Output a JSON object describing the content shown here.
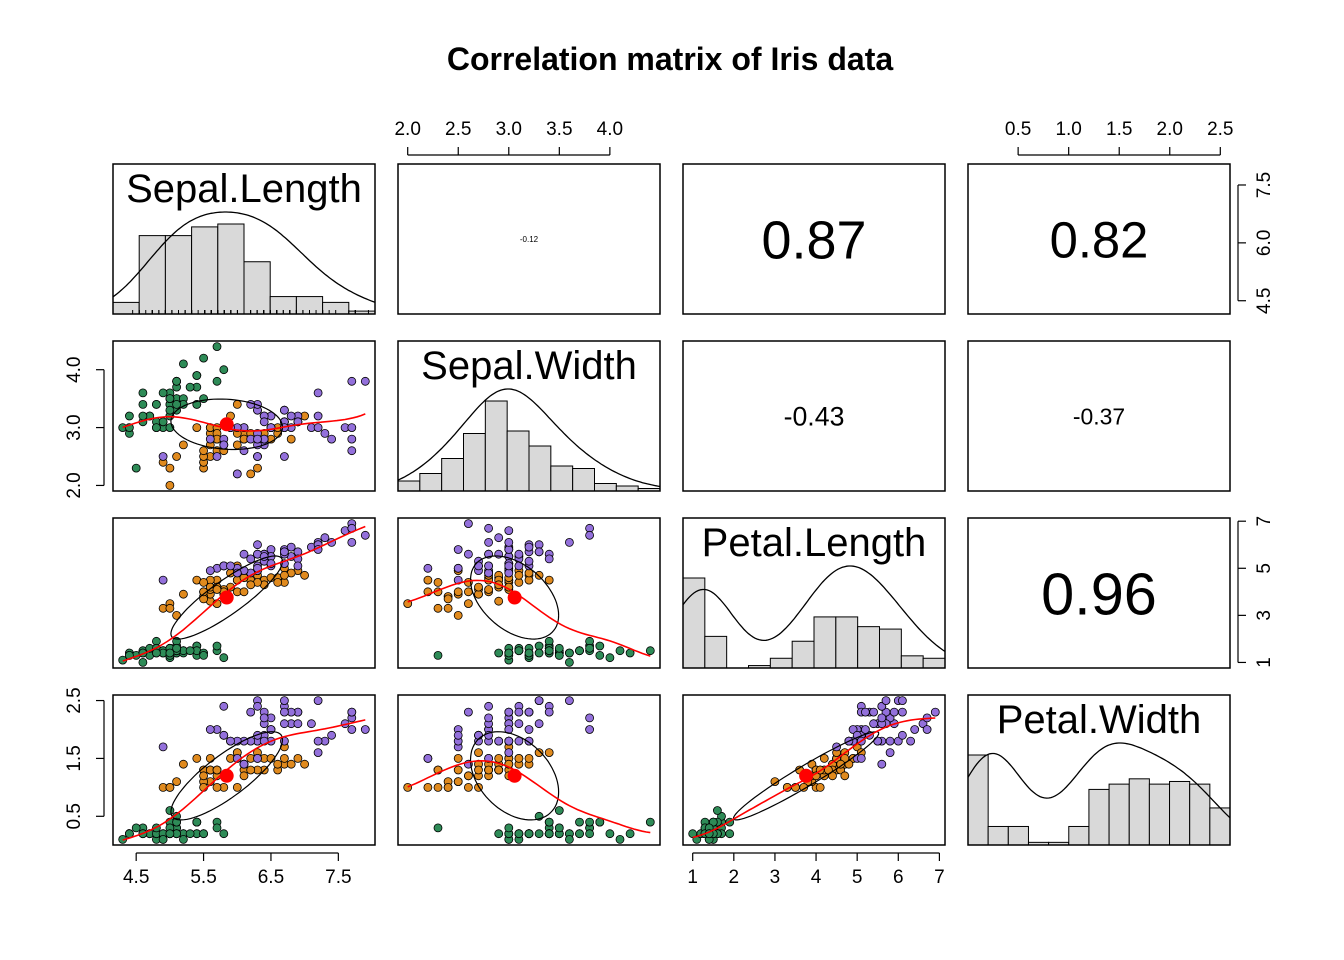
{
  "title": "Correlation matrix of Iris data",
  "chart_data": {
    "type": "scatter",
    "title": "Correlation matrix of Iris data",
    "variables": [
      "Sepal.Length",
      "Sepal.Width",
      "Petal.Length",
      "Petal.Width"
    ],
    "ranges": {
      "Sepal.Length": [
        4.3,
        7.9
      ],
      "Sepal.Width": [
        2.0,
        4.4
      ],
      "Petal.Length": [
        1.0,
        6.9
      ],
      "Petal.Width": [
        0.1,
        2.5
      ]
    },
    "ticks": {
      "Sepal.Length": [
        "4.5",
        "5.5",
        "6.5",
        "7.5"
      ],
      "Sepal.Width": [
        "2.0",
        "2.5",
        "3.0",
        "3.5",
        "4.0"
      ],
      "Sepal.Width.left": [
        "2.0",
        "3.0",
        "4.0"
      ],
      "Sepal.Length.right": [
        "4.5",
        "6.0",
        "7.5"
      ],
      "Petal.Length": [
        "1",
        "2",
        "3",
        "4",
        "5",
        "6",
        "7"
      ],
      "Petal.Length.right": [
        "1",
        "3",
        "5",
        "7"
      ],
      "Petal.Width": [
        "0.5",
        "1.0",
        "1.5",
        "2.0",
        "2.5"
      ],
      "Petal.Width.left": [
        "0.5",
        "1.5",
        "2.5"
      ]
    },
    "correlations": [
      {
        "row": 1,
        "col": 2,
        "label": "-0.12",
        "value": -0.12
      },
      {
        "row": 1,
        "col": 3,
        "label": "0.87",
        "value": 0.87
      },
      {
        "row": 1,
        "col": 4,
        "label": "0.82",
        "value": 0.82
      },
      {
        "row": 2,
        "col": 3,
        "label": "-0.43",
        "value": -0.43
      },
      {
        "row": 2,
        "col": 4,
        "label": "-0.37",
        "value": -0.37
      },
      {
        "row": 3,
        "col": 4,
        "label": "0.96",
        "value": 0.96
      }
    ],
    "histograms": {
      "Sepal.Length": {
        "breaks": [
          4.0,
          4.4,
          4.8,
          5.2,
          5.6,
          6.0,
          6.4,
          6.8,
          7.2,
          7.6,
          8.0
        ],
        "counts": [
          4,
          27,
          27,
          30,
          31,
          18,
          6,
          6,
          4,
          1
        ]
      },
      "Sepal.Width": {
        "breaks": [
          2.0,
          2.2,
          2.4,
          2.6,
          2.8,
          3.0,
          3.2,
          3.4,
          3.6,
          3.8,
          4.0,
          4.2,
          4.4
        ],
        "counts": [
          4,
          7,
          13,
          23,
          36,
          24,
          18,
          10,
          9,
          3,
          2,
          1
        ]
      },
      "Petal.Length": {
        "breaks": [
          1.0,
          1.5,
          2.0,
          2.5,
          3.0,
          3.5,
          4.0,
          4.5,
          5.0,
          5.5,
          6.0,
          6.5,
          7.0
        ],
        "counts": [
          37,
          13,
          0,
          1,
          4,
          11,
          21,
          21,
          17,
          16,
          5,
          4
        ]
      },
      "Petal.Width": {
        "breaks": [
          0.0,
          0.2,
          0.4,
          0.6,
          0.8,
          1.0,
          1.2,
          1.4,
          1.6,
          1.8,
          2.0,
          2.2,
          2.4,
          2.6
        ],
        "counts": [
          34,
          7,
          7,
          1,
          1,
          7,
          21,
          23,
          25,
          23,
          24,
          23,
          14
        ]
      }
    },
    "density_shape": {
      "Sepal.Length": "single-peak",
      "Sepal.Width": "single-peak",
      "Petal.Length": "bimodal",
      "Petal.Width": "bimodal"
    },
    "species_colors": [
      "#2e8b57",
      "#e08a1e",
      "#9370db"
    ],
    "center_point_color": "#ff0000",
    "fit_line_color": "#ff0000",
    "ellipse_color": "#000000",
    "grid": false,
    "legend": "none",
    "series": [
      {
        "name": "",
        "color": "#2e8b57",
        "Sepal.Length": [
          5.1,
          4.9,
          4.7,
          4.6,
          5.0,
          5.4,
          4.6,
          5.0,
          4.4,
          4.9,
          5.4,
          4.8,
          4.8,
          4.3,
          5.8,
          5.7,
          5.4,
          5.1,
          5.7,
          5.1,
          5.4,
          5.1,
          4.6,
          5.1,
          4.8,
          5.0,
          5.0,
          5.2,
          5.2,
          4.7,
          4.8,
          5.4,
          5.2,
          5.5,
          4.9,
          5.0,
          5.5,
          4.9,
          4.4,
          5.1,
          5.0,
          4.5,
          4.4,
          5.0,
          5.1,
          4.8,
          5.1,
          4.6,
          5.3,
          5.0
        ],
        "Sepal.Width": [
          3.5,
          3.0,
          3.2,
          3.1,
          3.6,
          3.9,
          3.4,
          3.4,
          2.9,
          3.1,
          3.7,
          3.4,
          3.0,
          3.0,
          4.0,
          4.4,
          3.9,
          3.5,
          3.8,
          3.8,
          3.4,
          3.7,
          3.6,
          3.3,
          3.4,
          3.0,
          3.4,
          3.5,
          3.4,
          3.2,
          3.1,
          3.4,
          4.1,
          4.2,
          3.1,
          3.2,
          3.5,
          3.6,
          3.0,
          3.4,
          3.5,
          2.3,
          3.2,
          3.5,
          3.8,
          3.0,
          3.8,
          3.2,
          3.7,
          3.3
        ],
        "Petal.Length": [
          1.4,
          1.4,
          1.3,
          1.5,
          1.4,
          1.7,
          1.4,
          1.5,
          1.4,
          1.5,
          1.5,
          1.6,
          1.4,
          1.1,
          1.2,
          1.5,
          1.3,
          1.4,
          1.7,
          1.5,
          1.7,
          1.5,
          1.0,
          1.7,
          1.9,
          1.6,
          1.6,
          1.5,
          1.4,
          1.6,
          1.6,
          1.5,
          1.5,
          1.4,
          1.5,
          1.2,
          1.3,
          1.4,
          1.3,
          1.5,
          1.3,
          1.3,
          1.3,
          1.6,
          1.9,
          1.4,
          1.6,
          1.4,
          1.5,
          1.4
        ],
        "Petal.Width": [
          0.2,
          0.2,
          0.2,
          0.2,
          0.2,
          0.4,
          0.3,
          0.2,
          0.2,
          0.1,
          0.2,
          0.2,
          0.1,
          0.1,
          0.2,
          0.4,
          0.4,
          0.3,
          0.3,
          0.3,
          0.2,
          0.4,
          0.2,
          0.5,
          0.2,
          0.2,
          0.4,
          0.2,
          0.2,
          0.2,
          0.2,
          0.4,
          0.1,
          0.2,
          0.2,
          0.2,
          0.2,
          0.1,
          0.2,
          0.2,
          0.3,
          0.3,
          0.2,
          0.6,
          0.4,
          0.3,
          0.2,
          0.2,
          0.2,
          0.2
        ]
      },
      {
        "name": "",
        "color": "#e08a1e",
        "Sepal.Length": [
          7.0,
          6.4,
          6.9,
          5.5,
          6.5,
          5.7,
          6.3,
          4.9,
          6.6,
          5.2,
          5.0,
          5.9,
          6.0,
          6.1,
          5.6,
          6.7,
          5.6,
          5.8,
          6.2,
          5.6,
          5.9,
          6.1,
          6.3,
          6.1,
          6.4,
          6.6,
          6.8,
          6.7,
          6.0,
          5.7,
          5.5,
          5.5,
          5.8,
          6.0,
          5.4,
          6.0,
          6.7,
          6.3,
          5.6,
          5.5,
          5.5,
          6.1,
          5.8,
          5.0,
          5.6,
          5.7,
          5.7,
          6.2,
          5.1,
          5.7
        ],
        "Sepal.Width": [
          3.2,
          3.2,
          3.1,
          2.3,
          2.8,
          2.8,
          3.3,
          2.4,
          2.9,
          2.7,
          2.0,
          3.0,
          2.2,
          2.9,
          2.9,
          3.1,
          3.0,
          2.7,
          2.2,
          2.5,
          3.2,
          2.8,
          2.5,
          2.8,
          2.9,
          3.0,
          2.8,
          3.0,
          2.9,
          2.6,
          2.4,
          2.4,
          2.7,
          2.7,
          3.0,
          3.4,
          3.1,
          2.3,
          3.0,
          2.5,
          2.6,
          3.0,
          2.6,
          2.3,
          2.7,
          3.0,
          2.9,
          2.9,
          2.5,
          2.8
        ],
        "Petal.Length": [
          4.7,
          4.5,
          4.9,
          4.0,
          4.6,
          4.5,
          4.7,
          3.3,
          4.6,
          3.9,
          3.5,
          4.2,
          4.0,
          4.7,
          3.6,
          4.4,
          4.5,
          4.1,
          4.5,
          3.9,
          4.8,
          4.0,
          4.9,
          4.7,
          4.3,
          4.4,
          4.8,
          5.0,
          4.5,
          3.5,
          3.8,
          3.7,
          3.9,
          5.1,
          4.5,
          4.5,
          4.7,
          4.4,
          4.1,
          4.0,
          4.4,
          4.6,
          4.0,
          3.3,
          4.2,
          4.2,
          4.2,
          4.3,
          3.0,
          4.1
        ],
        "Petal.Width": [
          1.4,
          1.5,
          1.5,
          1.3,
          1.5,
          1.3,
          1.6,
          1.0,
          1.3,
          1.4,
          1.0,
          1.5,
          1.0,
          1.4,
          1.3,
          1.4,
          1.5,
          1.0,
          1.5,
          1.1,
          1.8,
          1.3,
          1.5,
          1.2,
          1.3,
          1.4,
          1.4,
          1.7,
          1.5,
          1.0,
          1.1,
          1.0,
          1.2,
          1.6,
          1.5,
          1.6,
          1.5,
          1.3,
          1.3,
          1.3,
          1.2,
          1.4,
          1.2,
          1.0,
          1.3,
          1.2,
          1.3,
          1.3,
          1.1,
          1.3
        ]
      },
      {
        "name": "",
        "color": "#9370db",
        "Sepal.Length": [
          6.3,
          5.8,
          7.1,
          6.3,
          6.5,
          7.6,
          4.9,
          7.3,
          6.7,
          7.2,
          6.5,
          6.4,
          6.8,
          5.7,
          5.8,
          6.4,
          6.5,
          7.7,
          7.7,
          6.0,
          6.9,
          5.6,
          7.7,
          6.3,
          6.7,
          7.2,
          6.2,
          6.1,
          6.4,
          7.2,
          7.4,
          7.9,
          6.4,
          6.3,
          6.1,
          7.7,
          6.3,
          6.4,
          6.0,
          6.9,
          6.7,
          6.9,
          5.8,
          6.8,
          6.7,
          6.7,
          6.3,
          6.5,
          6.2,
          5.9
        ],
        "Sepal.Width": [
          3.3,
          2.7,
          3.0,
          2.9,
          3.0,
          3.0,
          2.5,
          2.9,
          2.5,
          3.6,
          3.2,
          2.7,
          3.0,
          2.5,
          2.8,
          3.2,
          3.0,
          3.8,
          2.6,
          2.2,
          3.2,
          2.8,
          2.8,
          2.7,
          3.3,
          3.2,
          2.8,
          3.0,
          2.8,
          3.0,
          2.8,
          3.8,
          2.8,
          2.8,
          2.6,
          3.0,
          3.4,
          3.1,
          3.0,
          3.1,
          3.1,
          3.1,
          2.7,
          3.2,
          3.3,
          3.0,
          2.5,
          3.0,
          3.4,
          3.0
        ],
        "Petal.Length": [
          6.0,
          5.1,
          5.9,
          5.6,
          5.8,
          6.6,
          4.5,
          6.3,
          5.8,
          6.1,
          5.1,
          5.3,
          5.5,
          5.0,
          5.1,
          5.3,
          5.5,
          6.7,
          6.9,
          5.0,
          5.7,
          4.9,
          6.7,
          4.9,
          5.7,
          6.0,
          4.8,
          4.9,
          5.6,
          5.8,
          6.1,
          6.4,
          5.6,
          5.1,
          5.6,
          6.1,
          5.6,
          5.5,
          4.8,
          5.4,
          5.6,
          5.1,
          5.1,
          5.9,
          5.7,
          5.2,
          5.0,
          5.2,
          5.4,
          5.1
        ],
        "Petal.Width": [
          2.5,
          1.9,
          2.1,
          1.8,
          2.2,
          2.1,
          1.7,
          1.8,
          1.8,
          2.5,
          2.0,
          1.9,
          2.1,
          2.0,
          2.4,
          2.3,
          1.8,
          2.2,
          2.3,
          1.5,
          2.3,
          2.0,
          2.0,
          1.8,
          2.1,
          1.8,
          1.8,
          1.8,
          2.1,
          1.6,
          1.9,
          2.0,
          2.2,
          1.5,
          1.4,
          2.3,
          2.4,
          1.8,
          1.8,
          2.1,
          2.4,
          2.3,
          1.9,
          2.3,
          2.5,
          2.3,
          1.9,
          2.0,
          2.3,
          1.8
        ]
      }
    ]
  }
}
